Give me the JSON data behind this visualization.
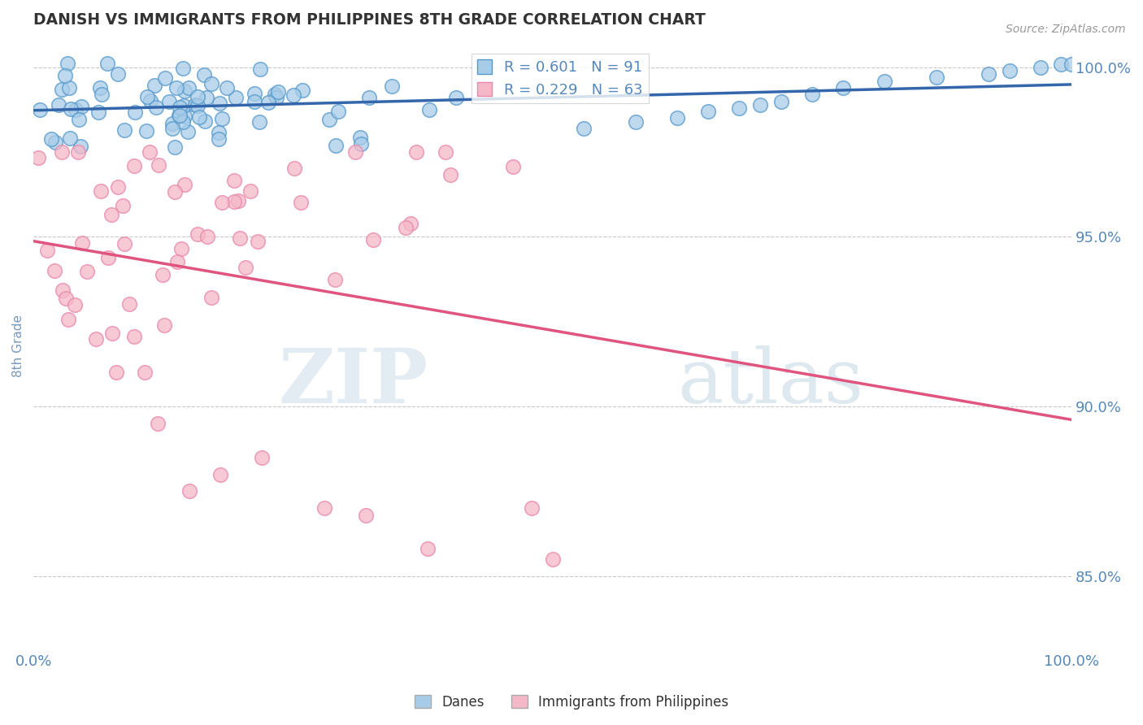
{
  "title": "DANISH VS IMMIGRANTS FROM PHILIPPINES 8TH GRADE CORRELATION CHART",
  "source_text": "Source: ZipAtlas.com",
  "ylabel": "8th Grade",
  "x_min": 0.0,
  "x_max": 1.0,
  "y_min": 0.828,
  "y_max": 1.008,
  "yticks": [
    0.85,
    0.9,
    0.95,
    1.0
  ],
  "ytick_labels": [
    "85.0%",
    "90.0%",
    "95.0%",
    "100.0%"
  ],
  "blue_R": 0.601,
  "blue_N": 91,
  "pink_R": 0.229,
  "pink_N": 63,
  "blue_color": "#a8cce8",
  "pink_color": "#f5b8c8",
  "blue_edge_color": "#5599cc",
  "pink_edge_color": "#e888aa",
  "blue_line_color": "#3366aa",
  "pink_line_color": "#e05580",
  "legend_label_blue": "Danes",
  "legend_label_pink": "Immigrants from Philippines",
  "watermark_zip": "ZIP",
  "watermark_atlas": "atlas",
  "background_color": "#ffffff",
  "grid_color": "#bbbbbb",
  "title_color": "#333333",
  "axis_label_color": "#7799bb",
  "tick_label_color": "#5588bb"
}
